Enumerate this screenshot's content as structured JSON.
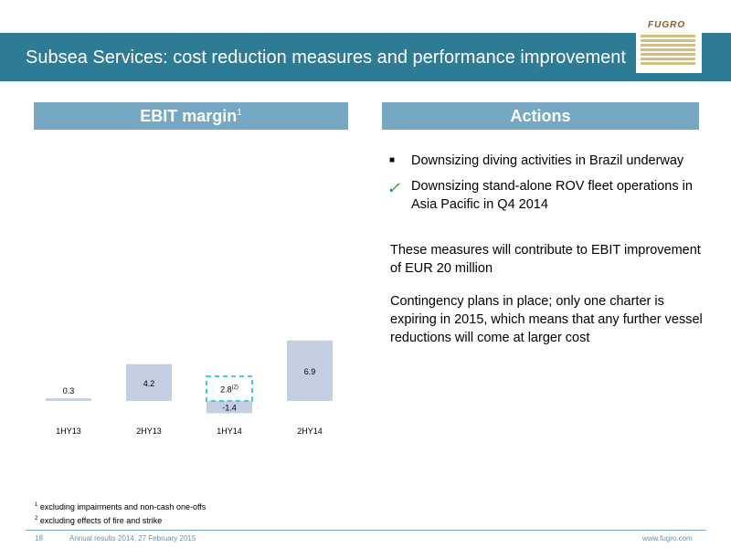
{
  "header": {
    "title": "Subsea Services: cost reduction measures and performance improvement",
    "logo_text": "FUGRO"
  },
  "left_panel": {
    "heading": "EBIT margin",
    "heading_sup": "1"
  },
  "right_panel": {
    "heading": "Actions",
    "bullets": [
      {
        "marker": "square",
        "text": "Downsizing diving activities in Brazil underway"
      },
      {
        "marker": "check",
        "text": "Downsizing stand-alone ROV fleet operations in Asia Pacific in Q4 2014"
      }
    ],
    "paragraphs": [
      "These measures will contribute to EBIT improvement of EUR 20 million",
      "Contingency plans in place; only one charter is expiring in 2015, which means that any further vessel reductions will come at larger cost"
    ]
  },
  "chart_data": {
    "type": "bar",
    "categories": [
      "1HY13",
      "2HY13",
      "1HY14",
      "2HY14"
    ],
    "values": [
      0.3,
      4.2,
      -1.4,
      6.9
    ],
    "value_labels": [
      "0.3",
      "4.2",
      "-1.4",
      "6.9"
    ],
    "annotation": {
      "category": "1HY14",
      "value": 2.8,
      "label": "2.8",
      "sup": "(2)",
      "style": "dashed box"
    },
    "colors": {
      "bar": "#c4d0e2",
      "annotation": "#3fc9d9"
    }
  },
  "footnotes": [
    {
      "sup": "1",
      "text": "excluding impairments and non-cash one-offs"
    },
    {
      "sup": "2",
      "text": "excluding effects of fire and strike"
    }
  ],
  "footer": {
    "page_number": "18",
    "event": "Annual results 2014, 27 February 2015",
    "website": "www.fugro.com"
  }
}
